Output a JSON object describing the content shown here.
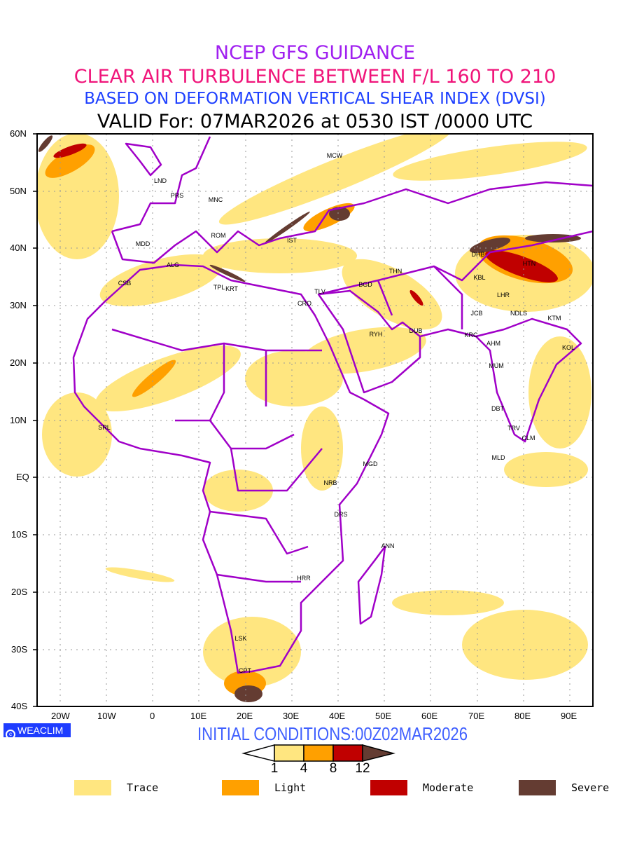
{
  "header": {
    "line1": "NCEP GFS GUIDANCE",
    "line2": "CLEAR AIR TURBULENCE BETWEEN F/L 160 TO 210",
    "line3": "BASED ON DEFORMATION VERTICAL SHEAR INDEX (DVSI)",
    "line4": "VALID For: 07MAR2026 at 0530 IST /0000 UTC"
  },
  "axes": {
    "lat_labels": [
      "60N",
      "50N",
      "40N",
      "30N",
      "20N",
      "10N",
      "EQ",
      "10S",
      "20S",
      "30S",
      "40S"
    ],
    "lon_labels": [
      "20W",
      "10W",
      "0",
      "10E",
      "20E",
      "30E",
      "40E",
      "50E",
      "60E",
      "70E",
      "80E",
      "90E"
    ]
  },
  "cities": [
    "MCW",
    "LND",
    "PRS",
    "MNC",
    "ROM",
    "IST",
    "MDD",
    "ALG",
    "CSB",
    "TPL",
    "KRT",
    "CRO",
    "TLV",
    "BGD",
    "THN",
    "RYH",
    "DUB",
    "DHB",
    "HTN",
    "KBL",
    "LHR",
    "JCB",
    "NDLS",
    "KTM",
    "KRC",
    "AHM",
    "KOL",
    "MUM",
    "DBT",
    "TRV",
    "CLM",
    "MLD",
    "SRL",
    "MGD",
    "NRB",
    "DRS",
    "ANN",
    "HRR",
    "LSK",
    "CPT"
  ],
  "footer": {
    "logo": "WEACLIM",
    "initial_conditions": "INITIAL CONDITIONS:00Z02MAR2026"
  },
  "colorbar": {
    "ticks": [
      "1",
      "4",
      "8",
      "12"
    ],
    "colors": [
      "#ffe680",
      "#ffa000",
      "#c00000",
      "#643c32"
    ]
  },
  "legend": [
    {
      "label": "Trace",
      "color": "#ffe680"
    },
    {
      "label": "Light",
      "color": "#ffa000"
    },
    {
      "label": "Moderate",
      "color": "#c00000"
    },
    {
      "label": "Severe",
      "color": "#643c32"
    }
  ],
  "colors": {
    "border": "#a000c8"
  }
}
